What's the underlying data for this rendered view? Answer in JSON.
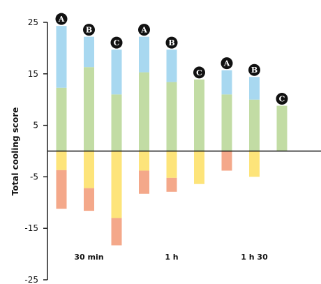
{
  "chart_data": {
    "type": "bar",
    "stacked": true,
    "ylabel": "Total cooling score",
    "ylim": [
      -25,
      25
    ],
    "yticks": [
      25,
      15,
      5,
      -5,
      -15,
      -25
    ],
    "grid": false,
    "groups": [
      "30 min",
      "1 h",
      "1 h 30"
    ],
    "categories": [
      "A",
      "B",
      "C",
      "A",
      "B",
      "C",
      "A",
      "B",
      "C"
    ],
    "category_group": [
      0,
      0,
      0,
      1,
      1,
      1,
      2,
      2,
      2
    ],
    "series": [
      {
        "color": "#c2dca4",
        "values": [
          12.3,
          16.3,
          11.0,
          15.3,
          13.4,
          13.9,
          11.0,
          10.0,
          8.8
        ]
      },
      {
        "color": "#a8d8f0",
        "values": [
          12.0,
          5.9,
          8.7,
          6.9,
          6.3,
          0,
          4.7,
          4.4,
          0
        ]
      },
      {
        "color": "#fde47a",
        "values": [
          -3.7,
          -7.2,
          -13.0,
          -3.8,
          -5.2,
          -6.4,
          0,
          -5.0,
          0
        ]
      },
      {
        "color": "#f4a88a",
        "values": [
          -7.5,
          -4.4,
          -5.3,
          -4.5,
          -2.7,
          0,
          -3.8,
          0,
          0
        ]
      }
    ],
    "badge_color": "#111111"
  }
}
